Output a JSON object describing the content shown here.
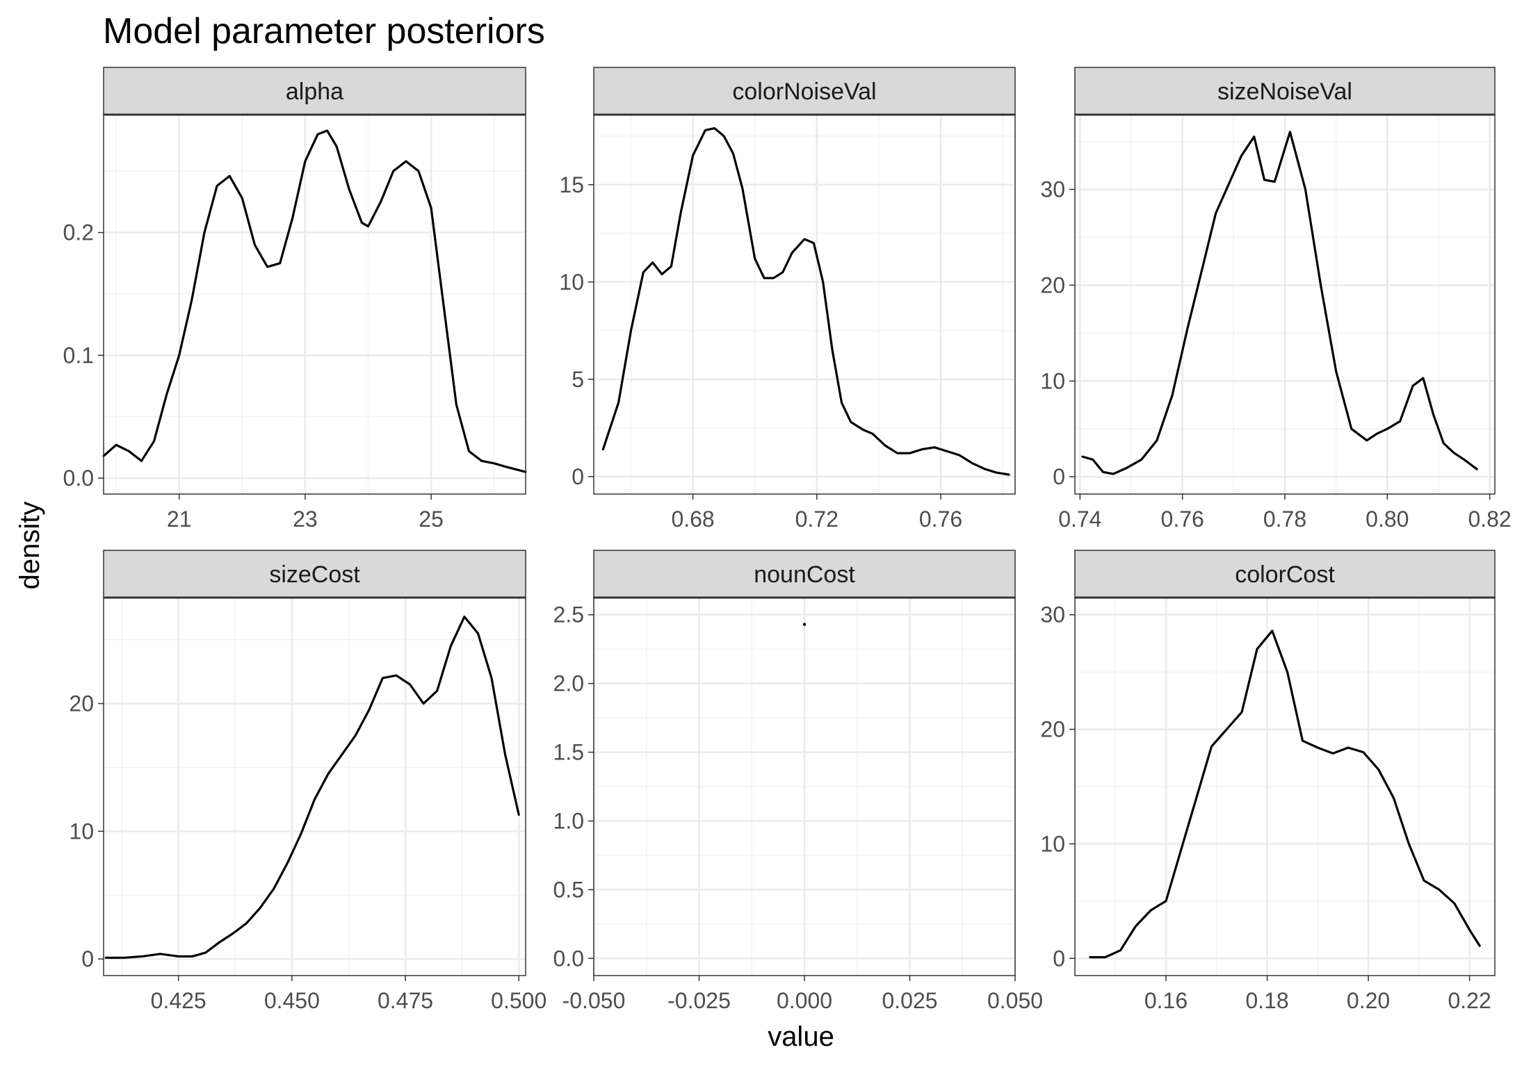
{
  "chart_data": {
    "type": "line",
    "title": "Model parameter posteriors",
    "xlabel": "value",
    "ylabel": "density",
    "grid": true,
    "facet_layout": "3 columns x 2 rows, free scales",
    "panels": [
      {
        "name": "alpha",
        "xlim": [
          19.8,
          26.5
        ],
        "ylim": [
          -0.013,
          0.296
        ],
        "x_ticks": [
          21,
          23,
          25
        ],
        "x_tick_labels": [
          "21",
          "23",
          "25"
        ],
        "y_ticks": [
          0.0,
          0.1,
          0.2
        ],
        "y_tick_labels": [
          "0.0",
          "0.1",
          "0.2"
        ],
        "x": [
          19.8,
          20.0,
          20.2,
          20.4,
          20.6,
          20.8,
          21.0,
          21.2,
          21.4,
          21.6,
          21.8,
          22.0,
          22.2,
          22.4,
          22.6,
          22.8,
          23.0,
          23.2,
          23.35,
          23.5,
          23.7,
          23.9,
          24.0,
          24.2,
          24.4,
          24.6,
          24.8,
          25.0,
          25.2,
          25.4,
          25.6,
          25.8,
          26.0,
          26.2,
          26.5
        ],
        "y": [
          0.018,
          0.027,
          0.022,
          0.014,
          0.03,
          0.068,
          0.1,
          0.145,
          0.2,
          0.238,
          0.246,
          0.228,
          0.19,
          0.172,
          0.175,
          0.212,
          0.258,
          0.28,
          0.283,
          0.27,
          0.235,
          0.208,
          0.205,
          0.225,
          0.25,
          0.258,
          0.25,
          0.22,
          0.14,
          0.06,
          0.022,
          0.014,
          0.012,
          0.009,
          0.005
        ]
      },
      {
        "name": "colorNoiseVal",
        "xlim": [
          0.648,
          0.784
        ],
        "ylim": [
          -0.9,
          18.6
        ],
        "x_ticks": [
          0.68,
          0.72,
          0.76
        ],
        "x_tick_labels": [
          "0.68",
          "0.72",
          "0.76"
        ],
        "y_ticks": [
          0,
          5,
          10,
          15
        ],
        "y_tick_labels": [
          "0",
          "5",
          "10",
          "15"
        ],
        "x": [
          0.651,
          0.656,
          0.66,
          0.664,
          0.667,
          0.67,
          0.673,
          0.676,
          0.68,
          0.684,
          0.687,
          0.69,
          0.693,
          0.696,
          0.7,
          0.703,
          0.706,
          0.709,
          0.712,
          0.716,
          0.719,
          0.722,
          0.725,
          0.728,
          0.731,
          0.735,
          0.738,
          0.742,
          0.746,
          0.75,
          0.754,
          0.758,
          0.762,
          0.766,
          0.77,
          0.774,
          0.778,
          0.782
        ],
        "y": [
          1.4,
          3.8,
          7.5,
          10.5,
          11.0,
          10.4,
          10.8,
          13.5,
          16.5,
          17.8,
          17.9,
          17.5,
          16.6,
          14.8,
          11.2,
          10.2,
          10.2,
          10.5,
          11.5,
          12.2,
          12.0,
          10.0,
          6.5,
          3.8,
          2.8,
          2.4,
          2.2,
          1.6,
          1.2,
          1.2,
          1.4,
          1.5,
          1.3,
          1.1,
          0.7,
          0.4,
          0.2,
          0.1
        ]
      },
      {
        "name": "sizeNoiseVal",
        "xlim": [
          0.739,
          0.821
        ],
        "ylim": [
          -1.8,
          37.8
        ],
        "x_ticks": [
          0.74,
          0.76,
          0.78,
          0.8,
          0.82
        ],
        "x_tick_labels": [
          "0.74",
          "0.76",
          "0.78",
          "0.80",
          "0.82"
        ],
        "y_ticks": [
          0,
          10,
          20,
          30
        ],
        "y_tick_labels": [
          "0",
          "10",
          "20",
          "30"
        ],
        "x": [
          0.7405,
          0.7425,
          0.7445,
          0.7465,
          0.749,
          0.752,
          0.755,
          0.758,
          0.761,
          0.764,
          0.7665,
          0.769,
          0.7715,
          0.774,
          0.776,
          0.778,
          0.781,
          0.784,
          0.787,
          0.79,
          0.793,
          0.796,
          0.798,
          0.8,
          0.8025,
          0.805,
          0.807,
          0.809,
          0.811,
          0.813,
          0.815,
          0.8175
        ],
        "y": [
          2.1,
          1.8,
          0.5,
          0.3,
          0.9,
          1.8,
          3.8,
          8.5,
          15.5,
          22.0,
          27.5,
          30.5,
          33.5,
          35.5,
          31.0,
          30.8,
          36.0,
          30.0,
          20.0,
          11.0,
          5.0,
          3.8,
          4.5,
          5.0,
          5.8,
          9.5,
          10.3,
          6.5,
          3.5,
          2.5,
          1.8,
          0.8
        ]
      },
      {
        "name": "sizeCost",
        "xlim": [
          0.4085,
          0.5015
        ],
        "ylim": [
          -1.3,
          28.3
        ],
        "x_ticks": [
          0.425,
          0.45,
          0.475,
          0.5
        ],
        "x_tick_labels": [
          "0.425",
          "0.450",
          "0.475",
          "0.500"
        ],
        "y_ticks": [
          0,
          10,
          20
        ],
        "y_tick_labels": [
          "0",
          "10",
          "20"
        ],
        "x": [
          0.409,
          0.413,
          0.417,
          0.421,
          0.425,
          0.428,
          0.431,
          0.434,
          0.437,
          0.44,
          0.443,
          0.446,
          0.449,
          0.452,
          0.455,
          0.458,
          0.461,
          0.464,
          0.467,
          0.47,
          0.473,
          0.476,
          0.479,
          0.482,
          0.485,
          0.488,
          0.491,
          0.494,
          0.497,
          0.5
        ],
        "y": [
          0.1,
          0.1,
          0.2,
          0.4,
          0.2,
          0.2,
          0.5,
          1.3,
          2.0,
          2.8,
          4.0,
          5.5,
          7.5,
          9.8,
          12.5,
          14.5,
          16.0,
          17.5,
          19.5,
          22.0,
          22.2,
          21.5,
          20.0,
          21.0,
          24.5,
          26.8,
          25.5,
          22.0,
          16.0,
          11.3
        ]
      },
      {
        "name": "nounCost",
        "xlim": [
          -0.05,
          0.05
        ],
        "ylim": [
          -0.125,
          2.625
        ],
        "x_ticks": [
          -0.05,
          -0.025,
          0,
          0.025,
          0.05
        ],
        "x_tick_labels": [
          "-0.050",
          "-0.025",
          "0.000",
          "0.025",
          "0.050"
        ],
        "y_ticks": [
          0,
          0.5,
          1.0,
          1.5,
          2.0,
          2.5
        ],
        "y_tick_labels": [
          "0.0",
          "0.5",
          "1.0",
          "1.5",
          "2.0",
          "2.5"
        ],
        "x": [
          0
        ],
        "y": [
          2.43
        ]
      },
      {
        "name": "colorCost",
        "xlim": [
          0.142,
          0.225
        ],
        "ylim": [
          -1.5,
          31.5
        ],
        "x_ticks": [
          0.16,
          0.18,
          0.2,
          0.22
        ],
        "x_tick_labels": [
          "0.16",
          "0.18",
          "0.20",
          "0.22"
        ],
        "y_ticks": [
          0,
          10,
          20,
          30
        ],
        "y_tick_labels": [
          "0",
          "10",
          "20",
          "30"
        ],
        "x": [
          0.145,
          0.148,
          0.151,
          0.154,
          0.157,
          0.16,
          0.163,
          0.166,
          0.169,
          0.172,
          0.175,
          0.178,
          0.181,
          0.184,
          0.187,
          0.19,
          0.193,
          0.196,
          0.199,
          0.202,
          0.205,
          0.208,
          0.211,
          0.214,
          0.217,
          0.22,
          0.222
        ],
        "y": [
          0.1,
          0.1,
          0.7,
          2.8,
          4.2,
          5.0,
          9.5,
          14.0,
          18.5,
          20.0,
          21.5,
          27.0,
          28.6,
          25.0,
          19.0,
          18.4,
          17.9,
          18.4,
          18.0,
          16.5,
          14.0,
          10.0,
          6.8,
          6.0,
          4.8,
          2.5,
          1.1
        ]
      }
    ]
  }
}
